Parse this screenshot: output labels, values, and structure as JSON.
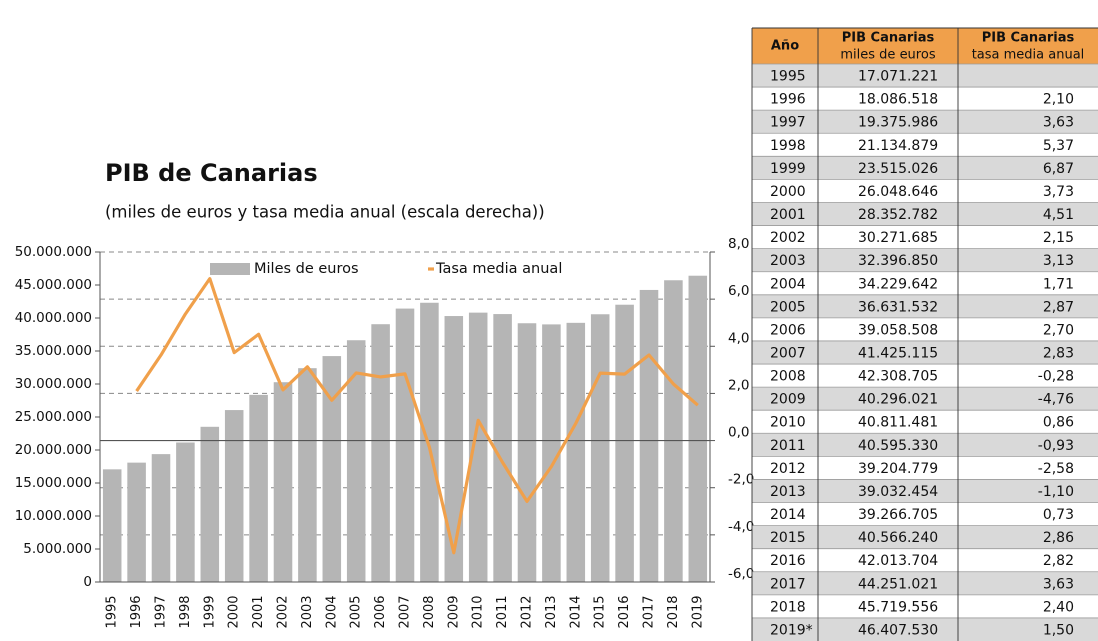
{
  "chart_data": {
    "type": "combo",
    "title": "PIB de Canarias",
    "subtitle": "(miles de euros y tasa media anual (escala derecha))",
    "categories": [
      "1995",
      "1996",
      "1997",
      "1998",
      "1999",
      "2000",
      "2001",
      "2002",
      "2003",
      "2004",
      "2005",
      "2006",
      "2007",
      "2008",
      "2009",
      "2010",
      "2011",
      "2012",
      "2013",
      "2014",
      "2015",
      "2016",
      "2017",
      "2018",
      "2019"
    ],
    "series": [
      {
        "name": "Miles de euros",
        "type": "bar",
        "color": "#b5b5b5",
        "values": [
          17071221,
          18086518,
          19375986,
          21134879,
          23515026,
          26048646,
          28352782,
          30271685,
          32396850,
          34229642,
          36631532,
          39058508,
          41425115,
          42308705,
          40296021,
          40811481,
          40595330,
          39204779,
          39032454,
          39266705,
          40566240,
          42013704,
          44251021,
          45719556,
          46407530
        ]
      },
      {
        "name": "Tasa media anual",
        "type": "line",
        "color": "#f0a04b",
        "axis": "y2",
        "values": [
          null,
          2.1,
          3.63,
          5.37,
          6.87,
          3.73,
          4.51,
          2.15,
          3.13,
          1.71,
          2.87,
          2.7,
          2.83,
          -0.28,
          -4.76,
          0.86,
          -0.93,
          -2.58,
          -1.1,
          0.73,
          2.86,
          2.82,
          3.63,
          2.4,
          1.5
        ]
      }
    ],
    "ylim": [
      0,
      50000000
    ],
    "yticks": [
      0,
      {
        "value": 5000000,
        "label": "5.000.000"
      },
      {
        "value": 10000000,
        "label": "10.000.000"
      },
      {
        "value": 15000000,
        "label": "15.000.000"
      },
      {
        "value": 20000000,
        "label": "20.000.000"
      },
      {
        "value": 25000000,
        "label": "25.000.000"
      },
      {
        "value": 30000000,
        "label": "30.000.000"
      },
      {
        "value": 35000000,
        "label": "35.000.000"
      },
      {
        "value": 40000000,
        "label": "40.000.000"
      },
      {
        "value": 45000000,
        "label": "45.000.000"
      },
      {
        "value": 50000000,
        "label": "50.000.000"
      }
    ],
    "y2lim": [
      -6,
      8
    ],
    "y2ticks": [
      {
        "value": -6,
        "label": "-6,0"
      },
      {
        "value": -4,
        "label": "-4,0"
      },
      {
        "value": -2,
        "label": "-2,0"
      },
      {
        "value": 0,
        "label": "0,0"
      },
      {
        "value": 2,
        "label": "2,0"
      },
      {
        "value": 4,
        "label": "4,0"
      },
      {
        "value": 6,
        "label": "6,0"
      },
      {
        "value": 8,
        "label": "8,0"
      }
    ],
    "grid": true,
    "legend": "top"
  },
  "table": {
    "header_color": "#f0a04b",
    "highlight_color": "#e3262f",
    "striped": true,
    "header": [
      {
        "title": "Año"
      },
      {
        "title": "PIB Canarias",
        "subtitle": "miles de euros"
      },
      {
        "title": "PIB Canarias",
        "subtitle": "tasa media anual"
      }
    ],
    "rows": [
      {
        "cells": [
          "1995",
          "17.071.221"
        ],
        "highlight": true
      },
      {
        "cells": [
          "1996",
          "18.086.518",
          "2,10"
        ],
        "highlight": true
      },
      {
        "cells": [
          "1997",
          "19.375.986",
          "3,63"
        ],
        "highlight": true
      },
      {
        "cells": [
          "1998",
          "21.134.879",
          "5,37"
        ],
        "highlight": true
      },
      {
        "cells": [
          "1999",
          "23.515.026",
          "6,87"
        ],
        "highlight": true
      },
      {
        "cells": [
          "2000",
          "26.048.646",
          "3,73"
        ]
      },
      {
        "cells": [
          "2001",
          "28.352.782",
          "4,51"
        ]
      },
      {
        "cells": [
          "2002",
          "30.271.685",
          "2,15"
        ]
      },
      {
        "cells": [
          "2003",
          "32.396.850",
          "3,13"
        ]
      },
      {
        "cells": [
          "2004",
          "34.229.642",
          "1,71"
        ]
      },
      {
        "cells": [
          "2005",
          "36.631.532",
          "2,87"
        ]
      },
      {
        "cells": [
          "2006",
          "39.058.508",
          "2,70"
        ]
      },
      {
        "cells": [
          "2007",
          "41.425.115",
          "2,83"
        ]
      },
      {
        "cells": [
          "2008",
          "42.308.705",
          "-0,28"
        ]
      },
      {
        "cells": [
          "2009",
          "40.296.021",
          "-4,76"
        ]
      },
      {
        "cells": [
          "2010",
          "40.811.481",
          "0,86"
        ]
      },
      {
        "cells": [
          "2011",
          "40.595.330",
          "-0,93"
        ]
      },
      {
        "cells": [
          "2012",
          "39.204.779",
          "-2,58"
        ]
      },
      {
        "cells": [
          "2013",
          "39.032.454",
          "-1,10"
        ]
      },
      {
        "cells": [
          "2014",
          "39.266.705",
          "0,73"
        ]
      },
      {
        "cells": [
          "2015",
          "40.566.240",
          "2,86"
        ]
      },
      {
        "cells": [
          "2016",
          "42.013.704",
          "2,82"
        ]
      },
      {
        "cells": [
          "2017",
          "44.251.021",
          "3,63"
        ]
      },
      {
        "cells": [
          "2018",
          "45.719.556",
          "2,40"
        ]
      },
      {
        "cells": [
          "2019*",
          "46.407.530",
          "1,50"
        ]
      }
    ]
  }
}
